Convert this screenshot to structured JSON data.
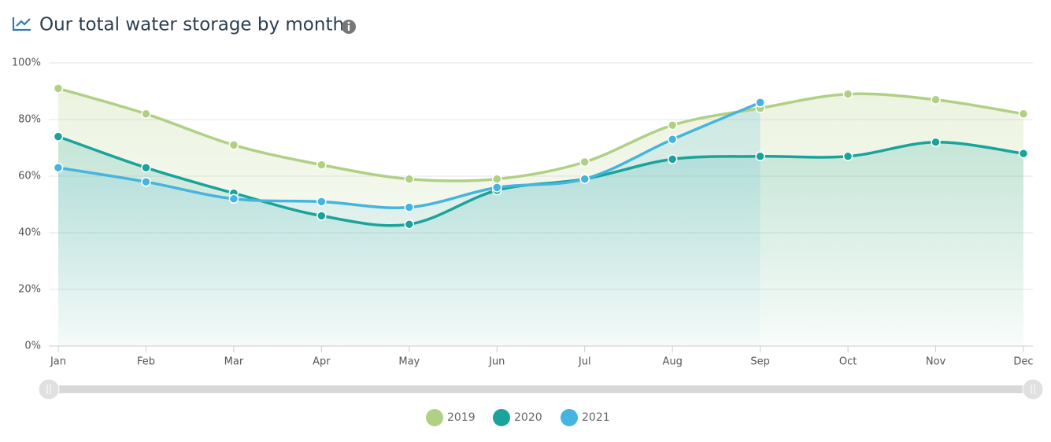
{
  "chart_data": {
    "type": "area",
    "title": "Our total water storage by month",
    "categories": [
      "Jan",
      "Feb",
      "Mar",
      "Apr",
      "May",
      "Jun",
      "Jul",
      "Aug",
      "Sep",
      "Oct",
      "Nov",
      "Dec"
    ],
    "series": [
      {
        "name": "2019",
        "color": "#b0d083",
        "values": [
          91,
          82,
          71,
          64,
          59,
          59,
          65,
          78,
          84,
          89,
          87,
          82
        ]
      },
      {
        "name": "2020",
        "color": "#1aa39b",
        "values": [
          74,
          63,
          54,
          46,
          43,
          55,
          59,
          66,
          67,
          67,
          72,
          68
        ]
      },
      {
        "name": "2021",
        "color": "#45b4de",
        "values": [
          63,
          58,
          52,
          51,
          49,
          56,
          59,
          73,
          86,
          null,
          null,
          null
        ]
      }
    ],
    "ylim": [
      0,
      100
    ],
    "yticks": [
      {
        "value": 0,
        "label": "0%"
      },
      {
        "value": 20,
        "label": "20%"
      },
      {
        "value": 40,
        "label": "40%"
      },
      {
        "value": 60,
        "label": "60%"
      },
      {
        "value": 80,
        "label": "80%"
      },
      {
        "value": 100,
        "label": "100%"
      }
    ],
    "grid": true,
    "legend": "bottom"
  }
}
